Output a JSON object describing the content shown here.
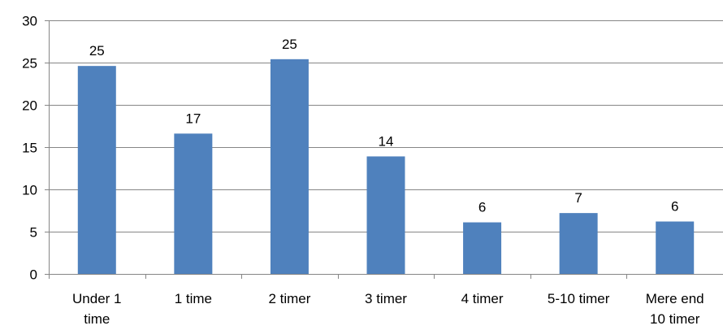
{
  "chart_data": {
    "type": "bar",
    "title": "",
    "xlabel": "",
    "ylabel": "",
    "categories": [
      "Under 1 time",
      "1 time",
      "2 timer",
      "3 timer",
      "4 timer",
      "5-10 timer",
      "Mere end 10 timer"
    ],
    "category_label_lines": [
      [
        "Under 1",
        "time"
      ],
      [
        "1 time"
      ],
      [
        "2 timer"
      ],
      [
        "3 timer"
      ],
      [
        "4 timer"
      ],
      [
        "5-10 timer"
      ],
      [
        "Mere end",
        "10 timer"
      ]
    ],
    "values": [
      24.6,
      16.6,
      25.4,
      13.9,
      6.1,
      7.2,
      6.2
    ],
    "data_labels": [
      "25",
      "17",
      "25",
      "14",
      "6",
      "7",
      "6"
    ],
    "ylim": [
      0,
      30
    ],
    "yticks": [
      0,
      5,
      10,
      15,
      20,
      25,
      30
    ],
    "grid": true,
    "legend": "none",
    "bar_color": "#4f81bd",
    "axis_color": "#868686",
    "grid_color": "#868686"
  }
}
